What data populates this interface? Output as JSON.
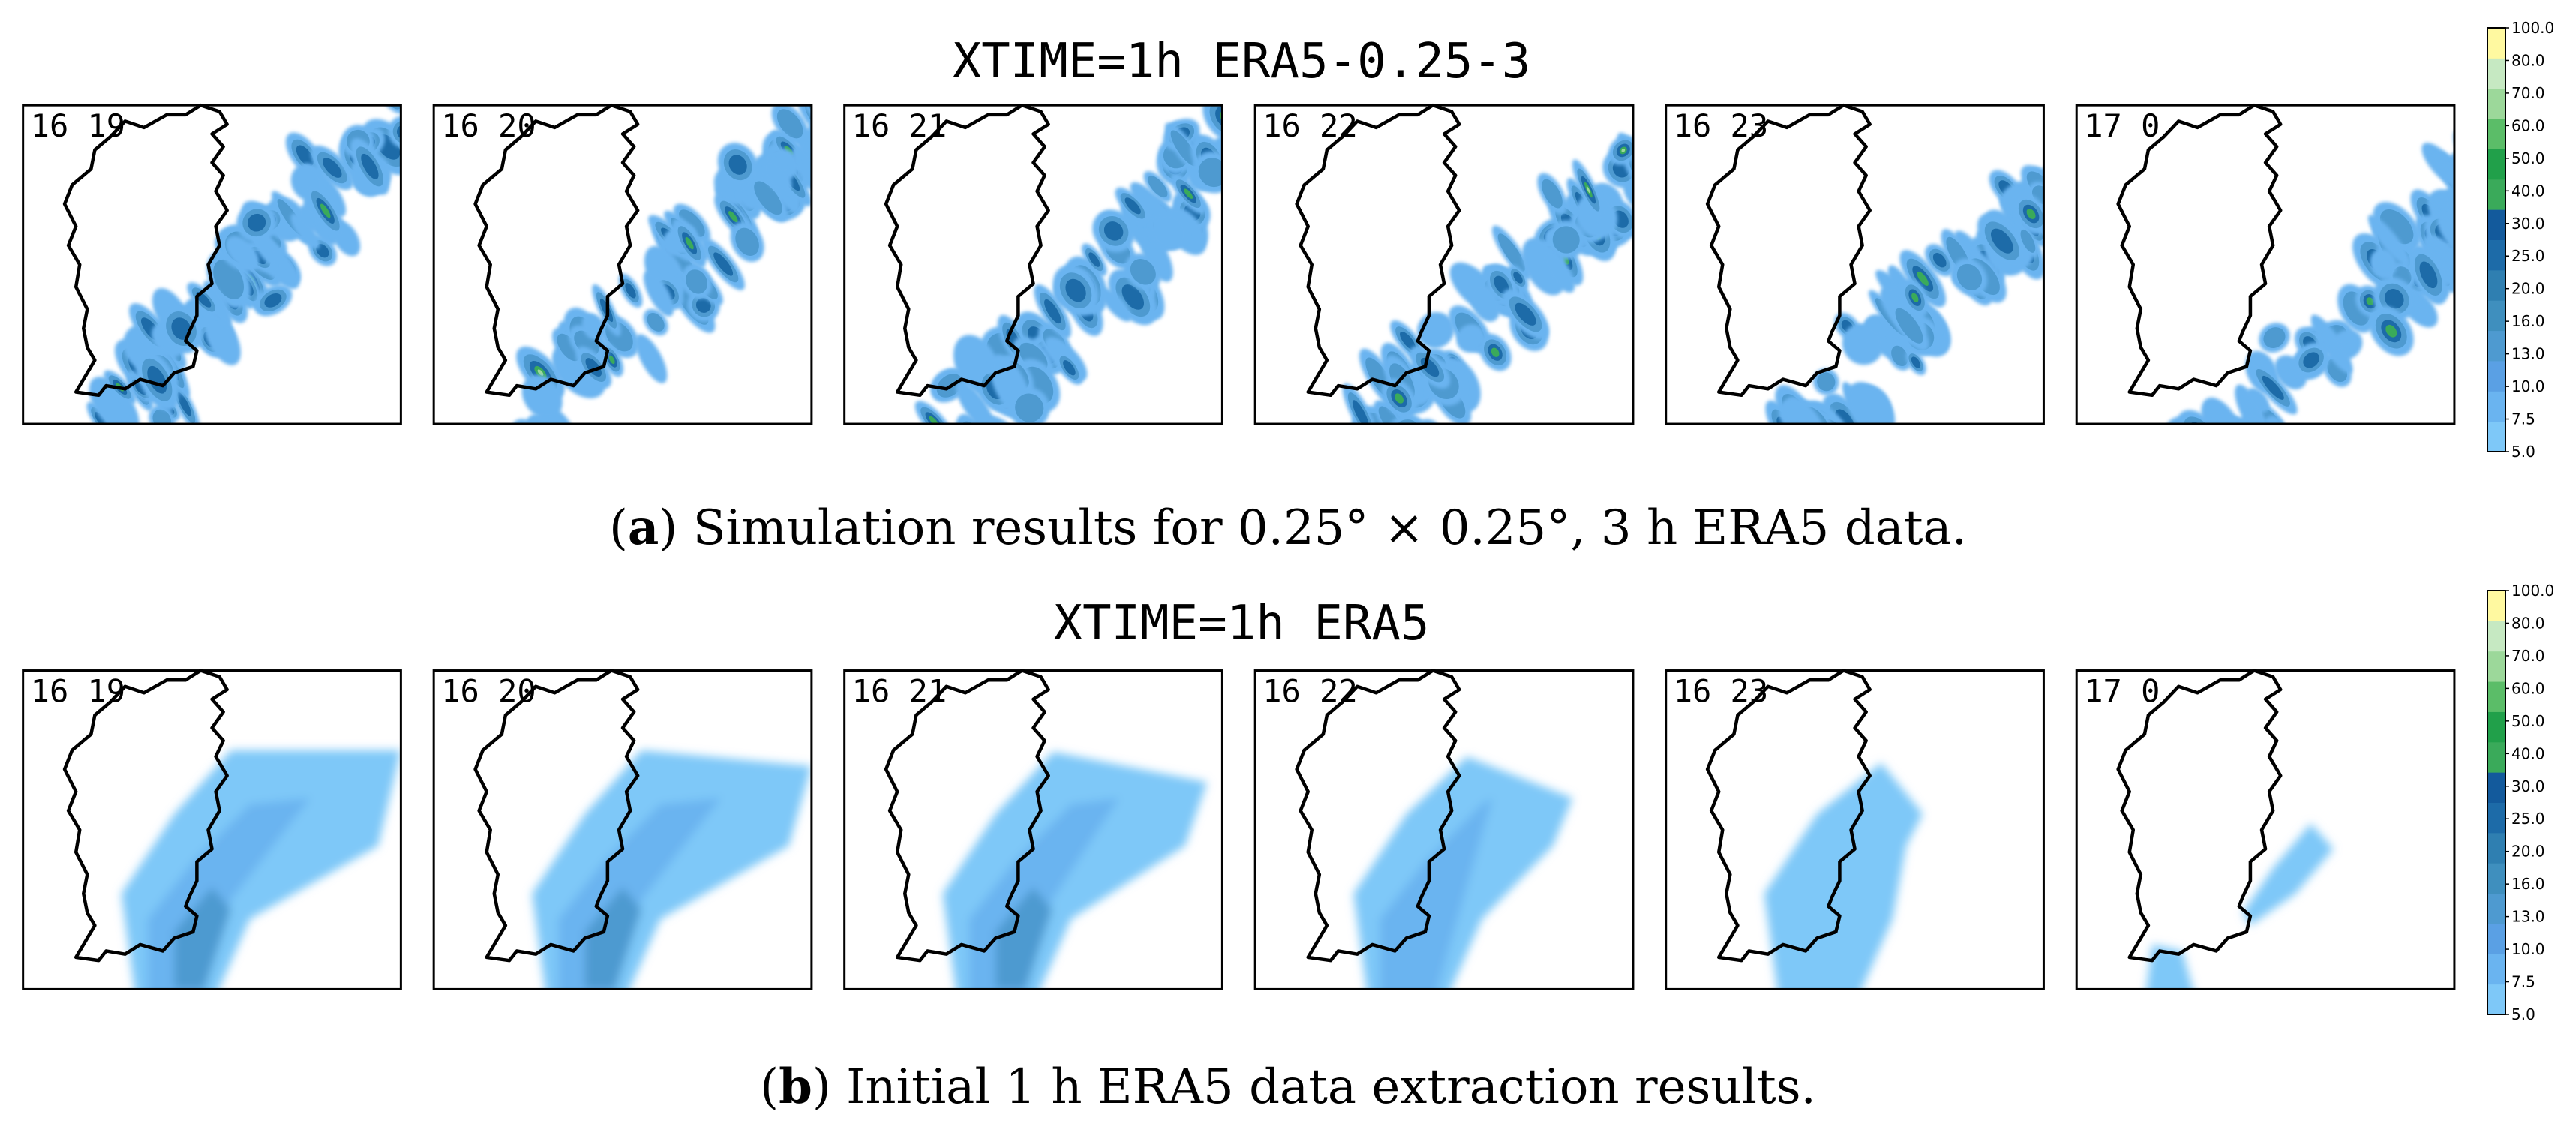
{
  "figure": {
    "rows": [
      {
        "id": "a",
        "title": "XTIME=1h ERA5-0.25-3",
        "caption_letter": "a",
        "caption_open": "(",
        "caption_close": ")",
        "caption_text": " Simulation results for 0.25° × 0.25°, 3 h ERA5 data.",
        "field_style": "cells",
        "panels": [
          {
            "label": "16 19"
          },
          {
            "label": "16 20"
          },
          {
            "label": "16 21"
          },
          {
            "label": "16 22"
          },
          {
            "label": "16 23"
          },
          {
            "label": "17 0"
          }
        ]
      },
      {
        "id": "b",
        "title": "XTIME=1h ERA5",
        "caption_letter": "b",
        "caption_open": "(",
        "caption_close": ")",
        "caption_text": " Initial 1 h ERA5 data extraction results.",
        "field_style": "smooth",
        "panels": [
          {
            "label": "16 19"
          },
          {
            "label": "16 20"
          },
          {
            "label": "16 21"
          },
          {
            "label": "16 22"
          },
          {
            "label": "16 23"
          },
          {
            "label": "17 0"
          }
        ]
      }
    ]
  },
  "chart_data": {
    "type": "heatmap",
    "title": [
      "XTIME=1h ERA5-0.25-3",
      "XTIME=1h ERA5"
    ],
    "panel_labels": [
      "16 19",
      "16 20",
      "16 21",
      "16 22",
      "16 23",
      "17 0"
    ],
    "colorbar": {
      "levels": [
        "5.0",
        "7.5",
        "10.0",
        "13.0",
        "16.0",
        "20.0",
        "25.0",
        "30.0",
        "40.0",
        "50.0",
        "60.0",
        "70.0",
        "80.0",
        "100.0"
      ],
      "colors": [
        "#7ec8f8",
        "#6ab4f0",
        "#5aa0e4",
        "#4e9ad0",
        "#3f8fbe",
        "#2f7fb1",
        "#1d6ba8",
        "#135a9c",
        "#3aaa5a",
        "#21a04a",
        "#5bbd68",
        "#9cd89a",
        "#c6e9c2",
        "#fff9a0"
      ]
    },
    "series": [
      {
        "name": "ERA5-0.25-3",
        "description_values": "embedded convective cells up to ~40-50 mm"
      },
      {
        "name": "ERA5",
        "description_values": "smooth band, mostly 5-16 mm"
      }
    ]
  }
}
